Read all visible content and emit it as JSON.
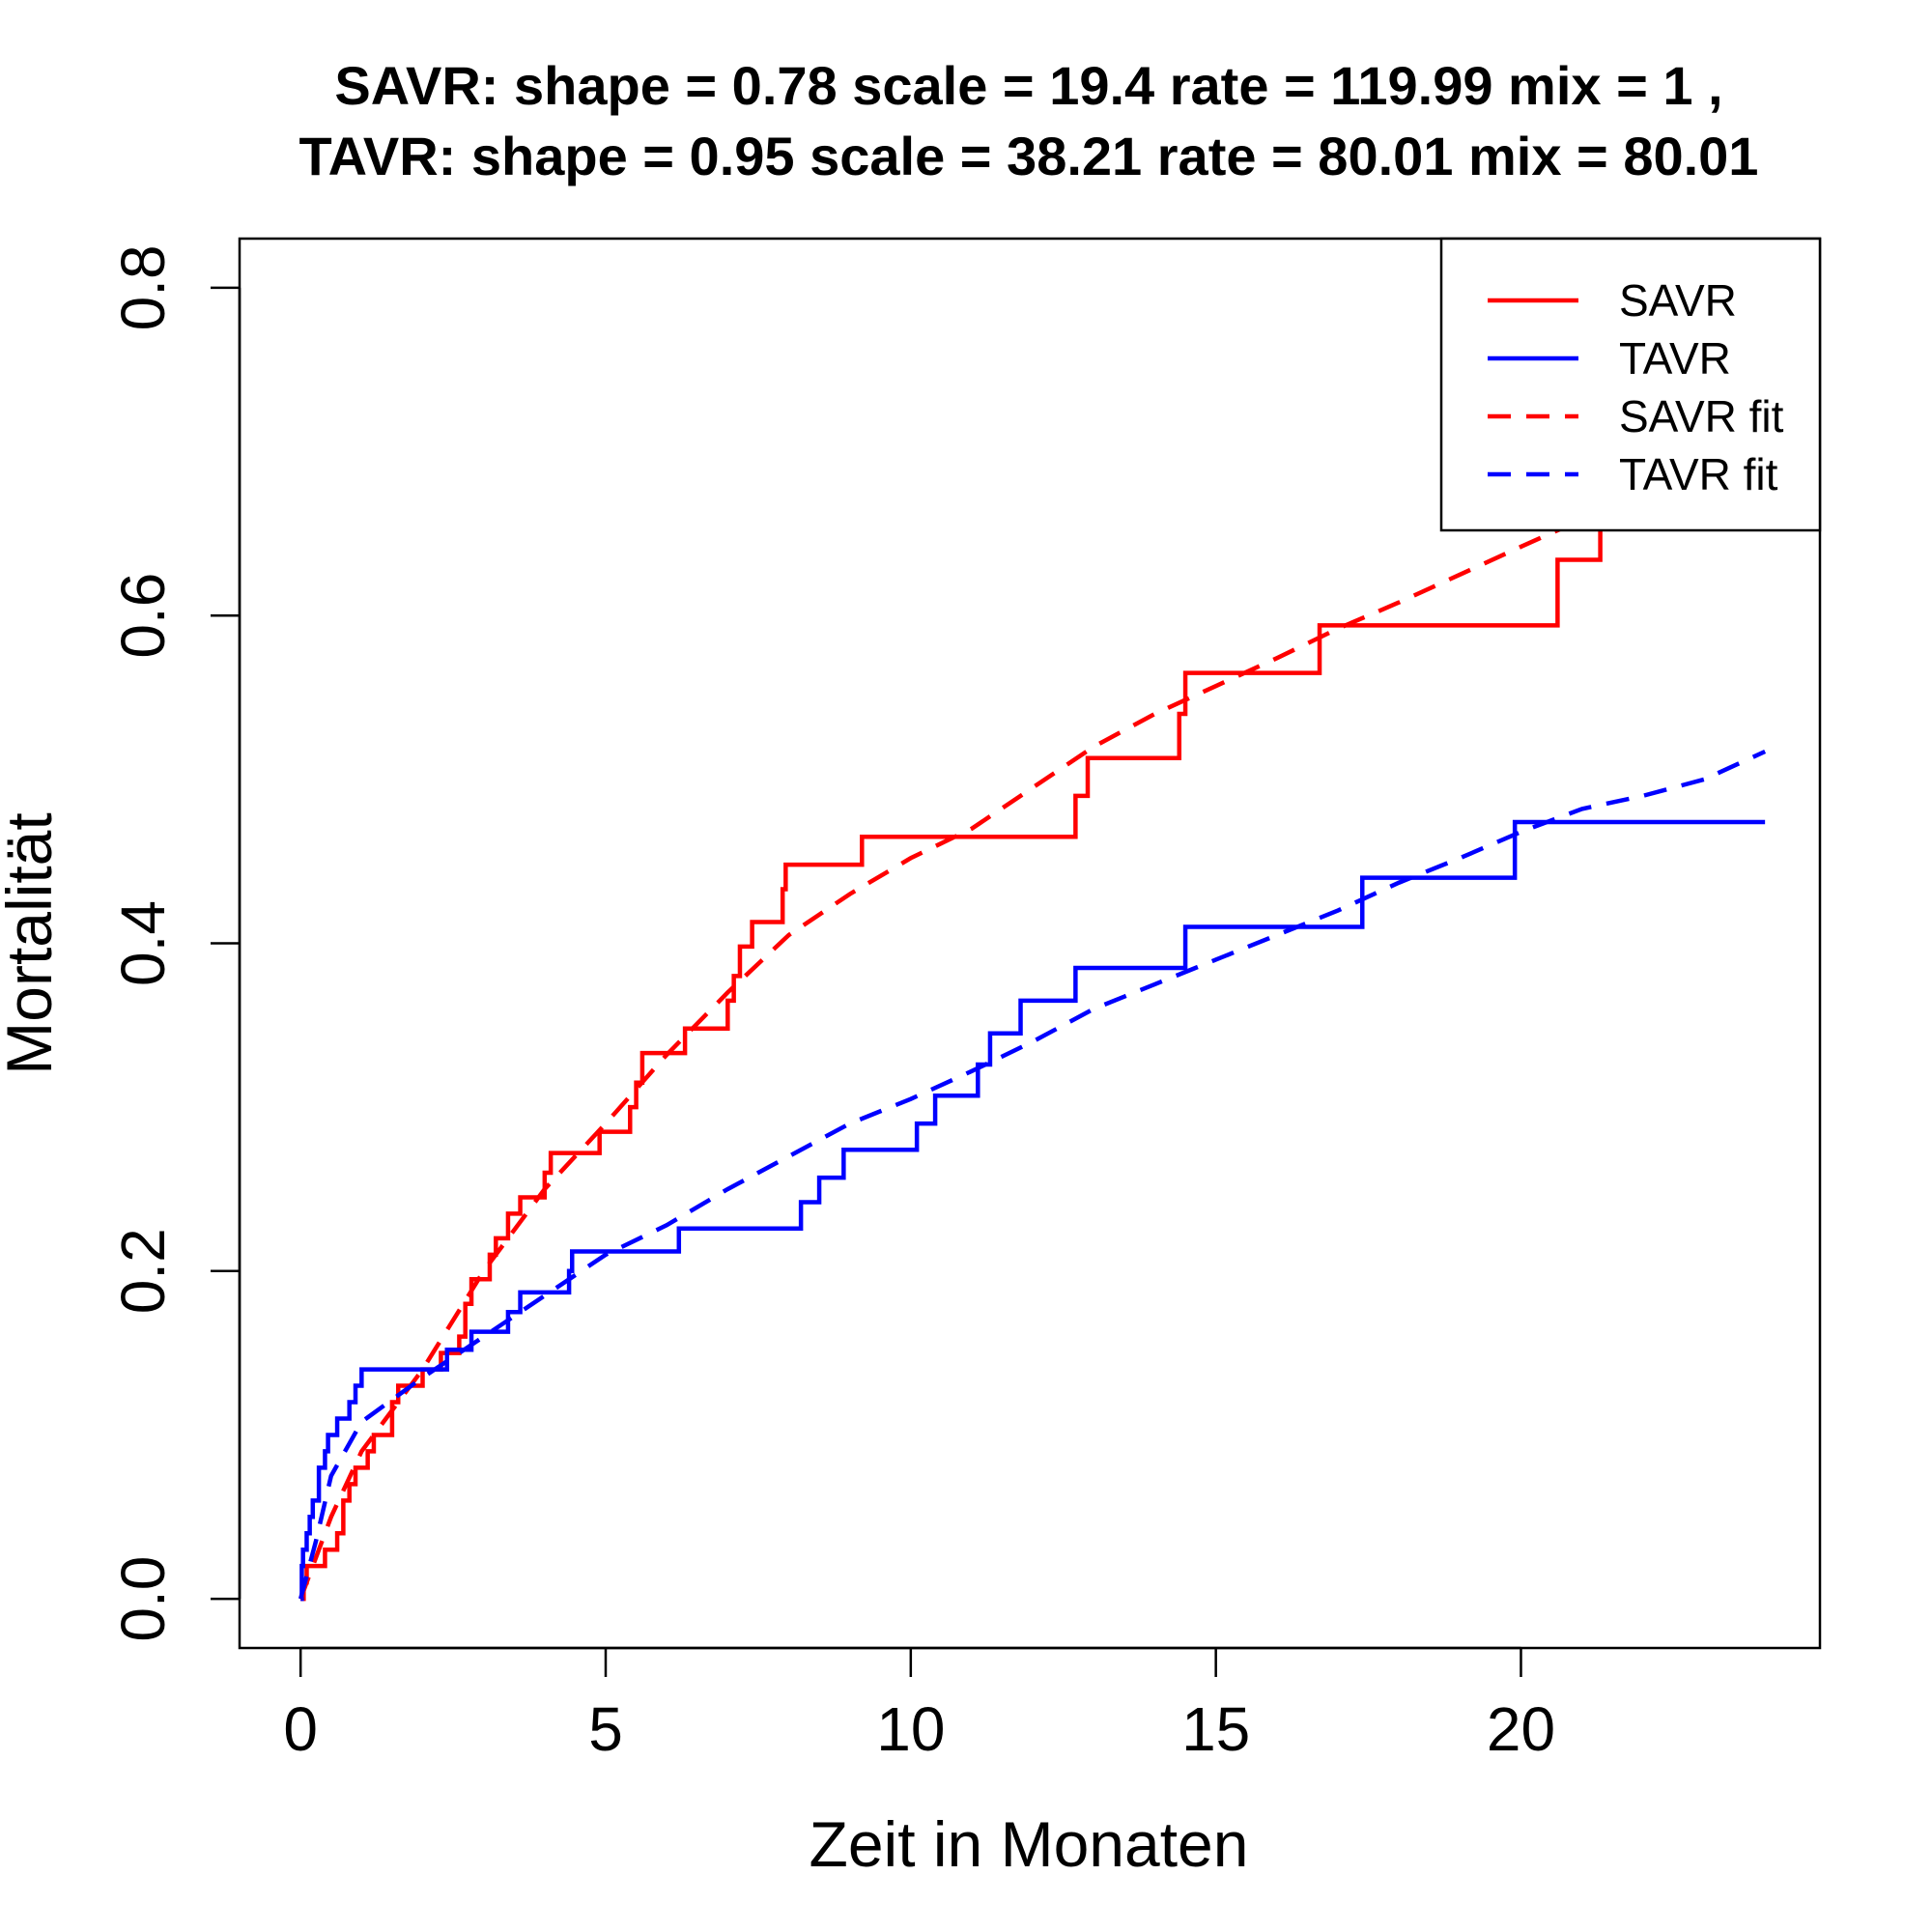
{
  "chart_data": {
    "type": "line",
    "title_line1": "SAVR:  shape =  0.78   scale =  19.4   rate =  119.99   mix =  1 ,",
    "title_line2": "TAVR:  shape =  0.95   scale =  38.21   rate =  80.01   mix =  80.01",
    "xlabel": "Zeit in Monaten",
    "ylabel": "Mortalität",
    "xlim": [
      -1,
      24.9
    ],
    "ylim": [
      -0.03,
      0.83
    ],
    "xticks": [
      0,
      5,
      10,
      15,
      20
    ],
    "xtick_labels": [
      "0",
      "5",
      "10",
      "15",
      "20"
    ],
    "yticks": [
      0.0,
      0.2,
      0.4,
      0.6,
      0.8
    ],
    "ytick_labels": [
      "0.0",
      "0.2",
      "0.4",
      "0.6",
      "0.8"
    ],
    "legend_position": "top-right",
    "series": [
      {
        "name": "SAVR",
        "style": "step",
        "color": "#ff0000",
        "dash": "solid",
        "points": [
          [
            0,
            0
          ],
          [
            0.05,
            0.01
          ],
          [
            0.1,
            0.02
          ],
          [
            0.4,
            0.03
          ],
          [
            0.6,
            0.04
          ],
          [
            0.7,
            0.06
          ],
          [
            0.8,
            0.07
          ],
          [
            0.9,
            0.08
          ],
          [
            1.1,
            0.09
          ],
          [
            1.2,
            0.1
          ],
          [
            1.5,
            0.12
          ],
          [
            1.6,
            0.13
          ],
          [
            2.0,
            0.14
          ],
          [
            2.3,
            0.15
          ],
          [
            2.6,
            0.16
          ],
          [
            2.7,
            0.18
          ],
          [
            2.8,
            0.195
          ],
          [
            3.1,
            0.21
          ],
          [
            3.2,
            0.22
          ],
          [
            3.4,
            0.235
          ],
          [
            3.6,
            0.245
          ],
          [
            4.0,
            0.26
          ],
          [
            4.1,
            0.272
          ],
          [
            4.9,
            0.285
          ],
          [
            5.4,
            0.3
          ],
          [
            5.5,
            0.315
          ],
          [
            5.6,
            0.333
          ],
          [
            6.3,
            0.348
          ],
          [
            7.0,
            0.365
          ],
          [
            7.1,
            0.38
          ],
          [
            7.2,
            0.398
          ],
          [
            7.4,
            0.413
          ],
          [
            7.9,
            0.433
          ],
          [
            7.95,
            0.448
          ],
          [
            9.2,
            0.465
          ],
          [
            12.7,
            0.49
          ],
          [
            12.9,
            0.513
          ],
          [
            14.4,
            0.54
          ],
          [
            14.5,
            0.565
          ],
          [
            16.7,
            0.594
          ],
          [
            20.6,
            0.634
          ],
          [
            21.3,
            0.68
          ]
        ]
      },
      {
        "name": "TAVR",
        "style": "step",
        "color": "#0000ff",
        "dash": "solid",
        "end_x": 24,
        "points": [
          [
            0,
            0
          ],
          [
            0.02,
            0.02
          ],
          [
            0.04,
            0.03
          ],
          [
            0.1,
            0.04
          ],
          [
            0.15,
            0.05
          ],
          [
            0.2,
            0.06
          ],
          [
            0.3,
            0.08
          ],
          [
            0.4,
            0.09
          ],
          [
            0.45,
            0.1
          ],
          [
            0.6,
            0.11
          ],
          [
            0.8,
            0.12
          ],
          [
            0.9,
            0.13
          ],
          [
            1.0,
            0.14
          ],
          [
            2.4,
            0.152
          ],
          [
            2.8,
            0.163
          ],
          [
            3.4,
            0.175
          ],
          [
            3.6,
            0.187
          ],
          [
            4.4,
            0.2
          ],
          [
            4.45,
            0.212
          ],
          [
            6.2,
            0.226
          ],
          [
            8.2,
            0.242
          ],
          [
            8.5,
            0.257
          ],
          [
            8.9,
            0.274
          ],
          [
            10.1,
            0.29
          ],
          [
            10.4,
            0.307
          ],
          [
            11.1,
            0.326
          ],
          [
            11.3,
            0.345
          ],
          [
            11.8,
            0.365
          ],
          [
            12.7,
            0.385
          ],
          [
            14.5,
            0.41
          ],
          [
            17.4,
            0.44
          ],
          [
            19.9,
            0.474
          ]
        ]
      },
      {
        "name": "SAVR fit",
        "style": "line",
        "color": "#ff0000",
        "dash": "dashed",
        "points": [
          [
            0,
            0
          ],
          [
            0.25,
            0.025
          ],
          [
            0.5,
            0.05
          ],
          [
            1.0,
            0.09
          ],
          [
            1.5,
            0.115
          ],
          [
            2.0,
            0.14
          ],
          [
            3.0,
            0.2
          ],
          [
            4.0,
            0.25
          ],
          [
            5.0,
            0.29
          ],
          [
            6.0,
            0.332
          ],
          [
            7.0,
            0.37
          ],
          [
            8.0,
            0.405
          ],
          [
            9.0,
            0.43
          ],
          [
            10.0,
            0.452
          ],
          [
            11.0,
            0.47
          ],
          [
            12.0,
            0.495
          ],
          [
            13.0,
            0.52
          ],
          [
            14.0,
            0.54
          ],
          [
            15.0,
            0.557
          ],
          [
            16.0,
            0.574
          ],
          [
            17.0,
            0.592
          ],
          [
            18.0,
            0.608
          ],
          [
            19.0,
            0.625
          ],
          [
            20.0,
            0.642
          ],
          [
            21.2,
            0.662
          ]
        ]
      },
      {
        "name": "TAVR fit",
        "style": "line",
        "color": "#0000ff",
        "dash": "dashed",
        "points": [
          [
            0,
            0
          ],
          [
            0.25,
            0.035
          ],
          [
            0.5,
            0.075
          ],
          [
            1.0,
            0.108
          ],
          [
            2.0,
            0.135
          ],
          [
            3.0,
            0.16
          ],
          [
            4.0,
            0.185
          ],
          [
            5.0,
            0.21
          ],
          [
            6.0,
            0.228
          ],
          [
            7.0,
            0.25
          ],
          [
            8.0,
            0.27
          ],
          [
            9.0,
            0.29
          ],
          [
            10.0,
            0.305
          ],
          [
            11.0,
            0.322
          ],
          [
            12.0,
            0.34
          ],
          [
            13.0,
            0.36
          ],
          [
            14.0,
            0.375
          ],
          [
            15.0,
            0.39
          ],
          [
            16.0,
            0.405
          ],
          [
            17.0,
            0.42
          ],
          [
            18.0,
            0.437
          ],
          [
            19.0,
            0.452
          ],
          [
            20.0,
            0.468
          ],
          [
            21.0,
            0.482
          ],
          [
            22.0,
            0.49
          ],
          [
            23.0,
            0.5
          ],
          [
            24.0,
            0.517
          ]
        ]
      }
    ]
  }
}
